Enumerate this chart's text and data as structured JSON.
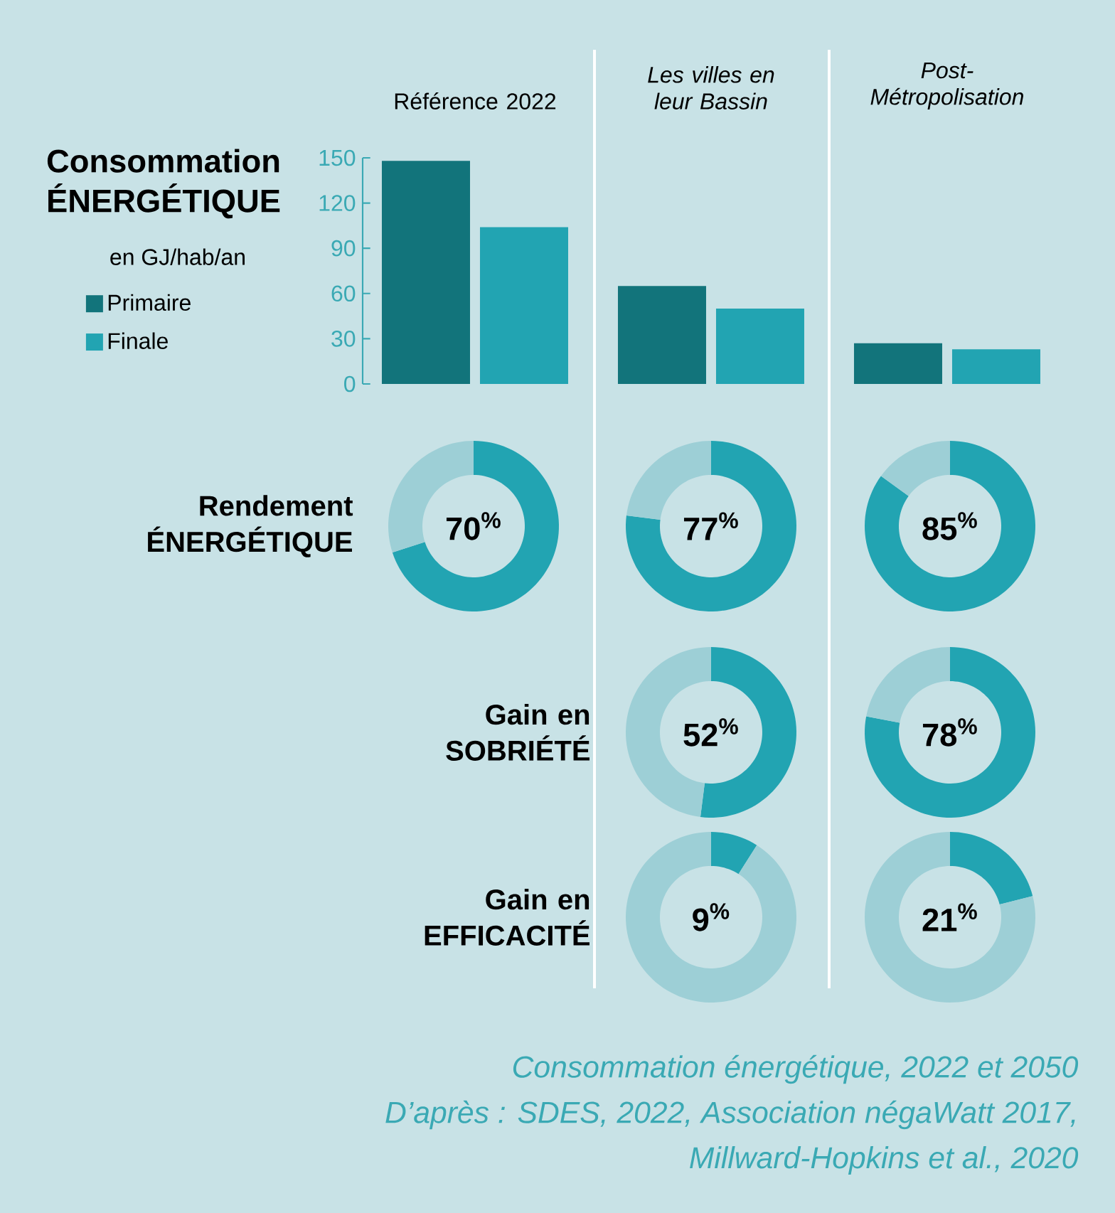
{
  "chart_data": [
    {
      "type": "bar",
      "title": "Consommation ÉNERGÉTIQUE",
      "subtitle": "en GJ/hab/an",
      "categories": [
        "Référence 2022",
        "Les villes en leur Bassin",
        "Post-Métropolisation"
      ],
      "series": [
        {
          "name": "Primaire",
          "color": "#12747b",
          "values": [
            148,
            65,
            27
          ]
        },
        {
          "name": "Finale",
          "color": "#22a4b2",
          "values": [
            104,
            50,
            23
          ]
        }
      ],
      "ylim": [
        0,
        150
      ],
      "yticks": [
        0,
        30,
        60,
        90,
        120,
        150
      ],
      "legend": "left",
      "grid": false,
      "annotations": [
        "Consommation énergétique, 2022 et 2050",
        "D’après : SDES, 2022, Association négaWatt 2017,",
        "Millward-Hopkins et al., 2020"
      ]
    },
    {
      "type": "donut",
      "title": "Rendement ÉNERGÉTIQUE",
      "categories": [
        null,
        null
      ],
      "values": [
        70,
        30
      ],
      "colors": [
        "#22a4b2",
        "#9dcfd6"
      ],
      "annotations": [
        "70$^{%}$"
      ]
    },
    {
      "type": "donut",
      "categories": [
        null,
        null
      ],
      "values": [
        77,
        23
      ],
      "colors": [
        "#22a4b2",
        "#9dcfd6"
      ],
      "annotations": [
        "77$^{%}$"
      ]
    },
    {
      "type": "donut",
      "categories": [
        null,
        null
      ],
      "values": [
        85,
        15
      ],
      "colors": [
        "#22a4b2",
        "#9dcfd6"
      ],
      "annotations": [
        "85$^{%}$"
      ]
    },
    {
      "type": "donut",
      "title": "Gain en SOBRIÉTÉ",
      "categories": [
        null,
        null
      ],
      "values": [
        52,
        48
      ],
      "colors": [
        "#22a4b2",
        "#9dcfd6"
      ],
      "annotations": [
        "52$^{%}$"
      ]
    },
    {
      "type": "donut",
      "categories": [
        null,
        null
      ],
      "values": [
        78,
        22
      ],
      "colors": [
        "#22a4b2",
        "#9dcfd6"
      ],
      "annotations": [
        "78$^{%}$"
      ]
    },
    {
      "type": "donut",
      "title": "Gain en EFFICACITÉ",
      "categories": [
        null,
        null
      ],
      "values": [
        9,
        91
      ],
      "colors": [
        "#22a4b2",
        "#9dcfd6"
      ],
      "annotations": [
        "9$^{%}$"
      ]
    },
    {
      "type": "donut",
      "categories": [
        null,
        null
      ],
      "values": [
        21,
        79
      ],
      "colors": [
        "#22a4b2",
        "#9dcfd6"
      ],
      "annotations": [
        "21$^{%}$"
      ]
    }
  ]
}
